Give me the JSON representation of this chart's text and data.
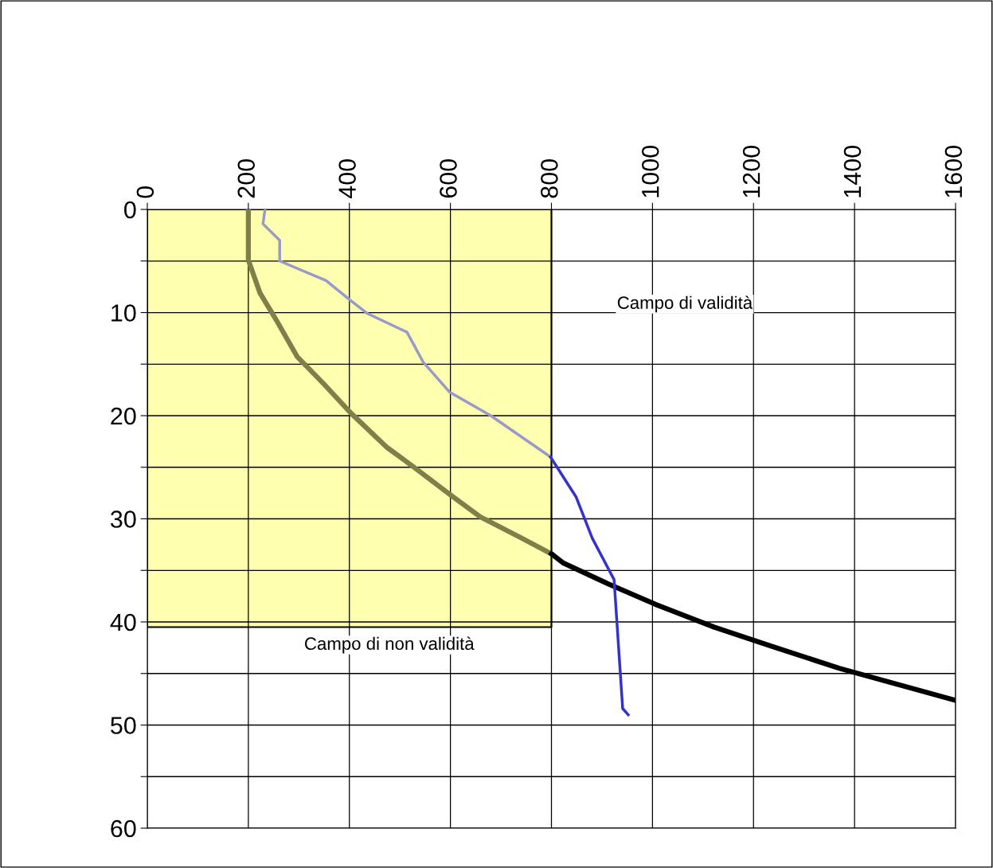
{
  "chart_data": {
    "type": "line",
    "series": [
      {
        "type": "area",
        "color": "#ffffb0",
        "x": [
          0,
          800
        ],
        "values": [
          40.5,
          40.5
        ]
      },
      {
        "color": "#7f7f4a",
        "x": [
          200,
          200,
          223,
          255,
          297,
          349,
          402,
          475,
          528,
          598,
          659,
          738,
          800
        ],
        "values": [
          0,
          4.9,
          8.1,
          10.7,
          14.3,
          16.9,
          19.7,
          23.1,
          25.0,
          27.6,
          29.8,
          31.8,
          33.4
        ]
      },
      {
        "color": "#000000",
        "x": [
          800,
          824,
          912,
          1006,
          1122,
          1238,
          1370,
          1600
        ],
        "values": [
          33.4,
          34.3,
          36.3,
          38.3,
          40.5,
          42.4,
          44.5,
          47.6
        ]
      },
      {
        "color": "#9999cc",
        "x": [
          233,
          229,
          262,
          262,
          354,
          399,
          436,
          514,
          546,
          598,
          680,
          798
        ],
        "values": [
          0,
          1.4,
          3.0,
          5.0,
          6.9,
          8.7,
          10.1,
          11.9,
          14.8,
          17.7,
          20.0,
          24.0
        ]
      },
      {
        "color": "#3333cc",
        "x": [
          798,
          849,
          881,
          924,
          941,
          952
        ],
        "values": [
          24.0,
          27.9,
          31.9,
          35.9,
          48.4,
          49.0
        ]
      }
    ],
    "xlim": [
      0,
      1600
    ],
    "xticks": [
      0,
      200,
      400,
      600,
      800,
      1000,
      1200,
      1400,
      1600
    ],
    "ylim": [
      60,
      0
    ],
    "yticks": [
      0,
      {
        "value": 5,
        "label": null
      },
      10,
      {
        "value": 15,
        "label": null
      },
      20,
      {
        "value": 25,
        "label": null
      },
      30,
      {
        "value": 35,
        "label": null
      },
      40,
      {
        "value": 45,
        "label": null
      },
      50,
      {
        "value": 55,
        "label": null
      },
      60
    ],
    "grid": true,
    "annotations": [
      "Campo di validità",
      "Campo di non validità"
    ]
  }
}
